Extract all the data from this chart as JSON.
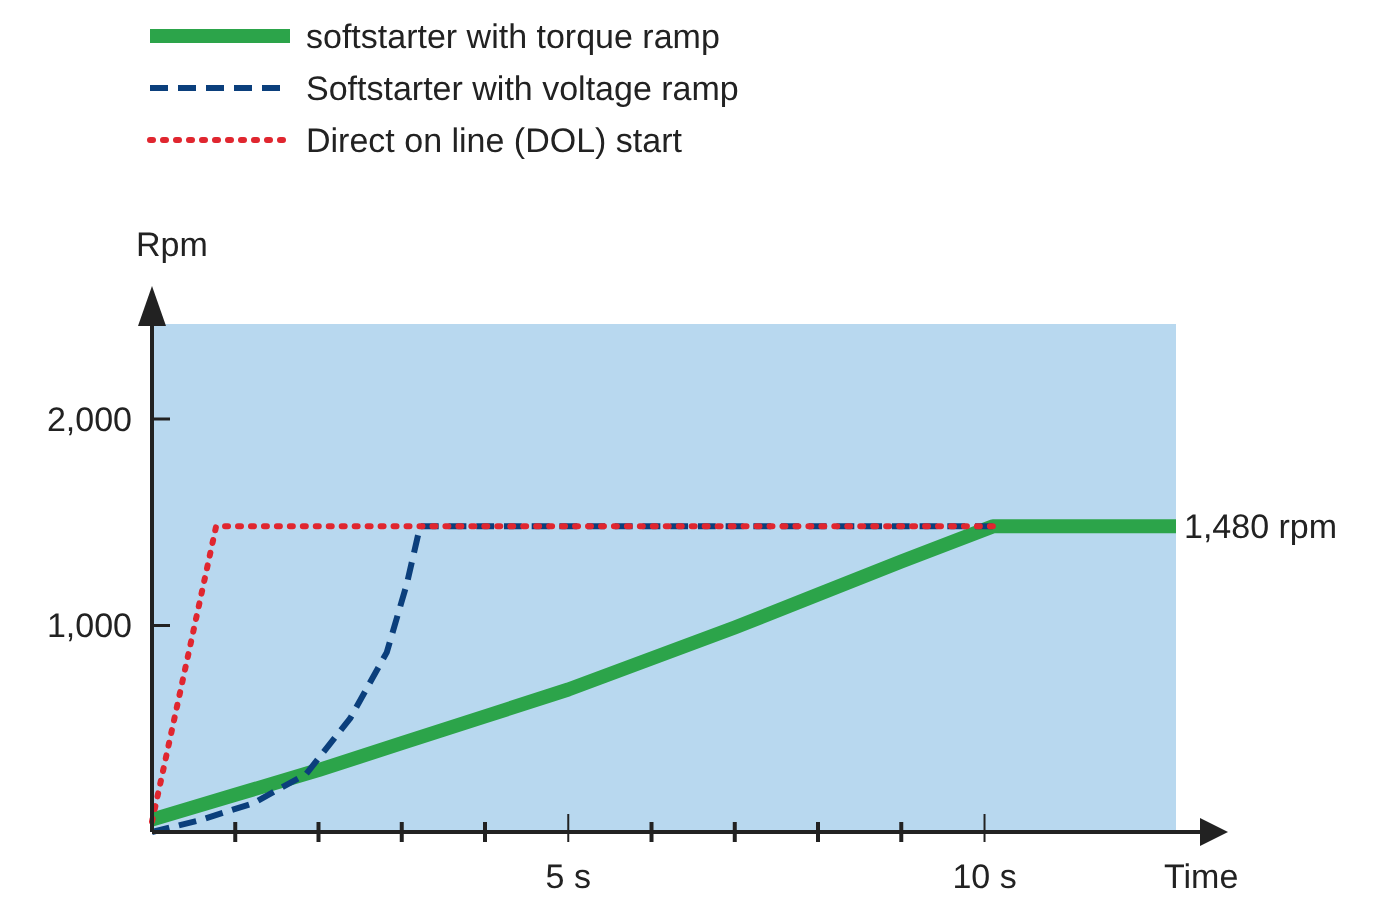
{
  "chart_data": {
    "type": "line",
    "xlabel": "Time",
    "ylabel": "Rpm",
    "xlim": [
      0,
      12.3
    ],
    "ylim": [
      0,
      2460
    ],
    "xticks": [
      {
        "value": 1,
        "label": null
      },
      {
        "value": 2,
        "label": null
      },
      {
        "value": 3,
        "label": null
      },
      {
        "value": 4,
        "label": null
      },
      {
        "value": 5,
        "label": "5 s"
      },
      {
        "value": 6,
        "label": null
      },
      {
        "value": 7,
        "label": null
      },
      {
        "value": 8,
        "label": null
      },
      {
        "value": 9,
        "label": null
      },
      {
        "value": 10,
        "label": "10 s"
      }
    ],
    "yticks": [
      {
        "value": 1000,
        "label": "1,000"
      },
      {
        "value": 2000,
        "label": "2,000"
      }
    ],
    "legend": "top left",
    "grid": false,
    "series": [
      {
        "name": "softstarter with torque ramp",
        "color": "#2ca44a",
        "line_style": "solid",
        "x": [
          0,
          1,
          2,
          3,
          4,
          5,
          6,
          7,
          8,
          9,
          10.1,
          12.3
        ],
        "values": [
          60,
          180,
          300,
          430,
          560,
          690,
          840,
          990,
          1150,
          1310,
          1480,
          1480
        ]
      },
      {
        "name": "Softstarter with voltage ramp",
        "color": "#0b3f7c",
        "line_style": "dashed",
        "x": [
          0,
          0.6,
          1.22,
          1.85,
          2.38,
          2.82,
          3.06,
          3.22,
          10.1
        ],
        "values": [
          0,
          60,
          140,
          280,
          550,
          870,
          1200,
          1480,
          1480
        ]
      },
      {
        "name": "Direct on line (DOL) start",
        "color": "#e0262f",
        "line_style": "dotted",
        "x": [
          0,
          0.77,
          10.1
        ],
        "values": [
          50,
          1480,
          1480
        ]
      }
    ],
    "annotations": [
      {
        "text": "1,480 rpm",
        "x": 12.3,
        "y": 1480
      }
    ]
  }
}
